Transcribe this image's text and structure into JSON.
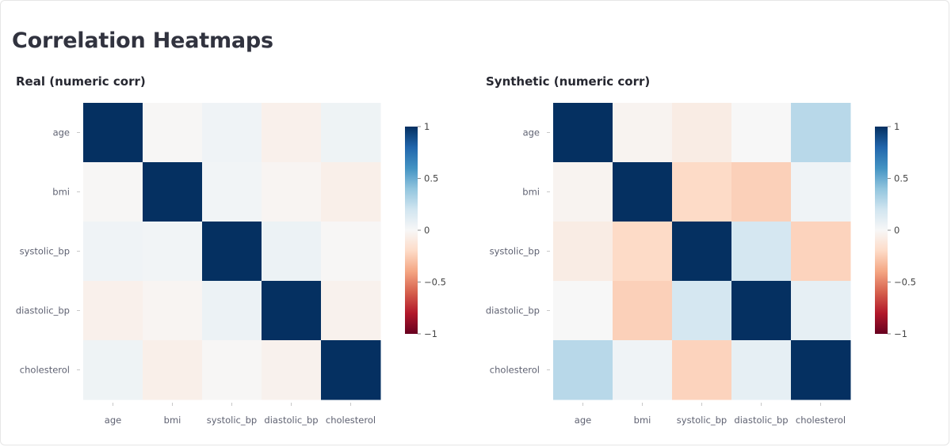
{
  "page": {
    "title": "Correlation Heatmaps"
  },
  "colorscale": {
    "name": "RdBu",
    "stops": [
      "#67001f",
      "#b2182b",
      "#d6604d",
      "#f4a582",
      "#fddbc7",
      "#f7f7f7",
      "#d1e5f0",
      "#92c5de",
      "#4393c3",
      "#2166ac",
      "#053061"
    ],
    "zmin": -1,
    "zmax": 1,
    "ticks": [
      1,
      0.5,
      0,
      -0.5,
      -1
    ],
    "tick_labels": [
      "1",
      "0.5",
      "0",
      "−0.5",
      "−1"
    ]
  },
  "chart_data": [
    {
      "type": "heatmap",
      "title": "Real (numeric corr)",
      "x": [
        "age",
        "bmi",
        "systolic_bp",
        "diastolic_bp",
        "cholesterol"
      ],
      "y": [
        "age",
        "bmi",
        "systolic_bp",
        "diastolic_bp",
        "cholesterol"
      ],
      "z": [
        [
          1.0,
          -0.01,
          0.04,
          -0.05,
          0.05
        ],
        [
          -0.01,
          1.0,
          0.03,
          -0.02,
          -0.06
        ],
        [
          0.04,
          0.03,
          1.0,
          0.06,
          -0.01
        ],
        [
          -0.05,
          -0.02,
          0.06,
          1.0,
          -0.04
        ],
        [
          0.05,
          -0.06,
          -0.01,
          -0.04,
          1.0
        ]
      ],
      "colorbar": true,
      "legend_position": "right"
    },
    {
      "type": "heatmap",
      "title": "Synthetic (numeric corr)",
      "x": [
        "age",
        "bmi",
        "systolic_bp",
        "diastolic_bp",
        "cholesterol"
      ],
      "y": [
        "age",
        "bmi",
        "systolic_bp",
        "diastolic_bp",
        "cholesterol"
      ],
      "z": [
        [
          1.0,
          -0.03,
          -0.08,
          0.0,
          0.28
        ],
        [
          -0.03,
          1.0,
          -0.2,
          -0.24,
          0.04
        ],
        [
          -0.08,
          -0.2,
          1.0,
          0.18,
          -0.23
        ],
        [
          0.0,
          -0.24,
          0.18,
          1.0,
          0.09
        ],
        [
          0.28,
          0.04,
          -0.23,
          0.09,
          1.0
        ]
      ],
      "colorbar": true,
      "legend_position": "right"
    }
  ]
}
